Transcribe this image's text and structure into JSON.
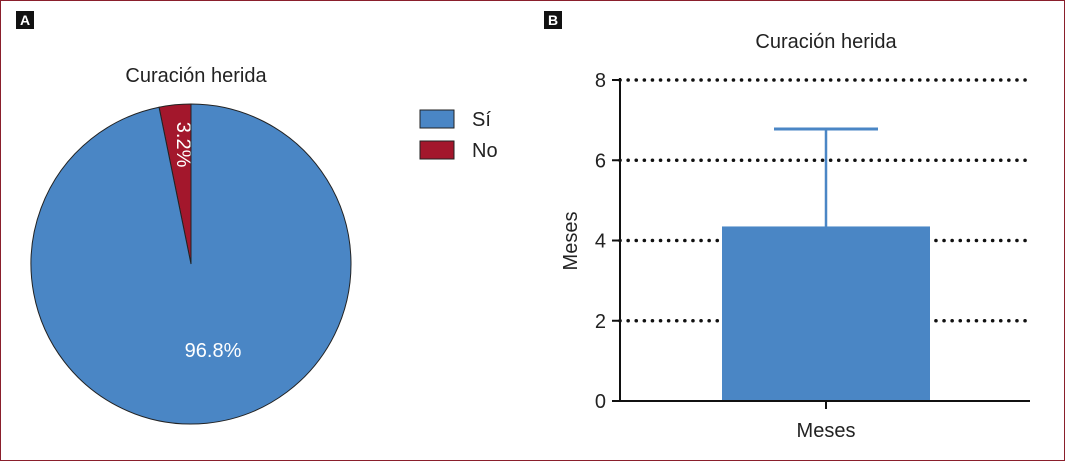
{
  "panels": {
    "a_label": "A",
    "b_label": "B"
  },
  "chart_data": [
    {
      "type": "pie",
      "title": "Curación herida",
      "slices": [
        {
          "label": "Sí",
          "value": 96.8,
          "display": "96.8%",
          "color": "#4a86c5"
        },
        {
          "label": "No",
          "value": 3.2,
          "display": "3.2%",
          "color": "#a3172c"
        }
      ],
      "legend_placement": "right"
    },
    {
      "type": "bar",
      "title": "Curación herida",
      "categories": [
        "Meses"
      ],
      "values": [
        4.35
      ],
      "error_upper": [
        6.78
      ],
      "color": "#4a86c5",
      "xlabel": "Meses",
      "ylabel": "Meses",
      "ylim": [
        0,
        8
      ],
      "yticks": [
        0,
        2,
        4,
        6,
        8
      ],
      "grid": "dotted-horizontal"
    }
  ]
}
